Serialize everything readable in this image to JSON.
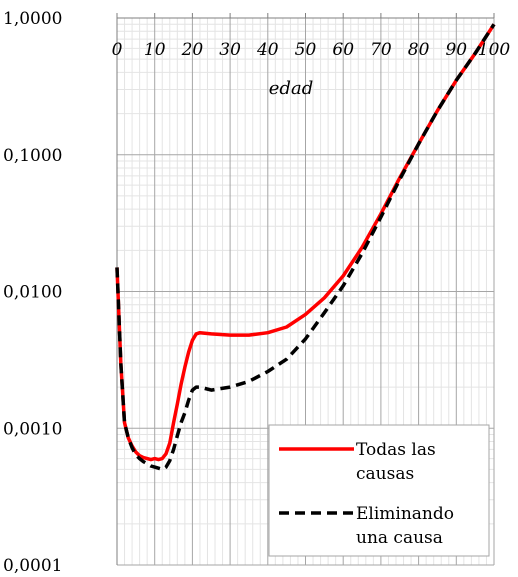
{
  "chart_data": {
    "type": "line",
    "title": "",
    "xlabel": "edad",
    "ylabel": "",
    "x_ticks": [
      "0",
      "10",
      "20",
      "30",
      "40",
      "50",
      "60",
      "70",
      "80",
      "90",
      "100"
    ],
    "y_ticks": [
      "1,0000",
      "0,1000",
      "0,0100",
      "0,0010",
      "0,0001"
    ],
    "y_scale": "log",
    "xlim": [
      0,
      100
    ],
    "ylim": [
      0.0001,
      1
    ],
    "grid": true,
    "legend_position": "bottom-right",
    "colors": {
      "series1": "#ff0000",
      "series2": "#000000"
    },
    "series": [
      {
        "name": "Todas las causas",
        "style": "solid",
        "color": "#ff0000",
        "x": [
          0,
          1,
          2,
          3,
          4,
          5,
          6,
          7,
          8,
          9,
          10,
          11,
          12,
          13,
          14,
          15,
          16,
          17,
          18,
          19,
          20,
          21,
          22,
          25,
          30,
          35,
          40,
          45,
          50,
          55,
          60,
          65,
          70,
          75,
          80,
          85,
          90,
          95,
          100
        ],
        "y": [
          0.015,
          0.003,
          0.0011,
          0.00085,
          0.00074,
          0.00067,
          0.00063,
          0.00061,
          0.0006,
          0.00059,
          0.0006,
          0.00059,
          0.0006,
          0.00065,
          0.00078,
          0.0011,
          0.0015,
          0.0021,
          0.0028,
          0.0036,
          0.0044,
          0.0049,
          0.005,
          0.0049,
          0.0048,
          0.0048,
          0.005,
          0.0055,
          0.0068,
          0.009,
          0.013,
          0.021,
          0.037,
          0.068,
          0.12,
          0.21,
          0.35,
          0.55,
          0.9
        ]
      },
      {
        "name": "Eliminando una causa",
        "style": "dashed",
        "color": "#000000",
        "x": [
          0,
          1,
          2,
          3,
          4,
          5,
          6,
          7,
          8,
          9,
          10,
          11,
          12,
          13,
          14,
          15,
          16,
          17,
          18,
          19,
          20,
          21,
          22,
          25,
          30,
          35,
          40,
          45,
          50,
          55,
          60,
          65,
          70,
          75,
          80,
          85,
          90,
          95,
          100
        ],
        "y": [
          0.015,
          0.003,
          0.0011,
          0.00085,
          0.00072,
          0.00064,
          0.0006,
          0.00057,
          0.00055,
          0.00053,
          0.00052,
          0.00051,
          0.0005,
          0.00052,
          0.00058,
          0.0007,
          0.00088,
          0.0011,
          0.0013,
          0.0016,
          0.0019,
          0.002,
          0.002,
          0.0019,
          0.002,
          0.0022,
          0.0026,
          0.0032,
          0.0045,
          0.007,
          0.011,
          0.019,
          0.035,
          0.066,
          0.12,
          0.21,
          0.35,
          0.55,
          0.9
        ]
      }
    ],
    "legend_lines": [
      [
        "Todas las",
        "causas"
      ],
      [
        "Eliminando",
        "una causa"
      ]
    ]
  }
}
